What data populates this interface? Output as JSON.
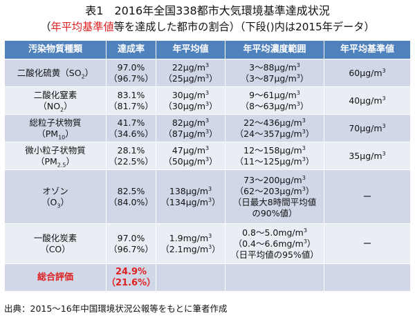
{
  "title": {
    "line1": "表1　2016年全国338都市大気環境基準達成状況",
    "line2_open": "（",
    "line2_red": "年平均基準値",
    "line2_rest": "等を達成した都市の割合）（下段()内は2015年データ）"
  },
  "headers": [
    "汚染物質種類",
    "達成率",
    "年平均値",
    "年平均濃度範囲",
    "年平均基準値"
  ],
  "rows": [
    {
      "pollutant": "二酸化硫黄（SO",
      "pollutant_sub": "2",
      "pollutant_close": "）",
      "rate_2016": "97.0%",
      "rate_2015": "（96.7%）",
      "avg_2016": "22μg/m",
      "avg_2015": "（25μg/m",
      "range_2016": "3～88μg/m",
      "range_2015": "（3～87μg/m",
      "standard": "60μg/m"
    },
    {
      "pollutant": "二酸化窒素",
      "formula": "（NO",
      "formula_sub": "2",
      "formula_close": "）",
      "rate_2016": "83.1%",
      "rate_2015": "（81.7%）",
      "avg_2016": "30μg/m",
      "avg_2015": "（30μg/m",
      "range_2016": "9～61μg/m",
      "range_2015": "（8～63μg/m",
      "standard": "40μg/m"
    },
    {
      "pollutant": "総粒子状物質",
      "formula": "（PM",
      "formula_sub": "10",
      "formula_close": "）",
      "rate_2016": "41.7%",
      "rate_2015": "（34.6%）",
      "avg_2016": "82μg/m",
      "avg_2015": "（87μg/m",
      "range_2016": "22～436μg/m",
      "range_2015": "（24～357μg/m",
      "standard": "70μg/m"
    },
    {
      "pollutant": "微小粒子状物質",
      "formula": "（PM",
      "formula_sub": "2.5",
      "formula_close": "）",
      "rate_2016": "28.1%",
      "rate_2015": "（22.5%）",
      "avg_2016": "47μg/m",
      "avg_2015": "（50μg/m",
      "range_2016": "12～158μg/m",
      "range_2015": "（11～125μg/m",
      "standard": "35μg/m"
    },
    {
      "pollutant": "オゾン",
      "formula": "（O",
      "formula_sub": "3",
      "formula_close": "）",
      "rate_2016": "82.5%",
      "rate_2015": "（84.0%）",
      "avg_2016": "138μg/m",
      "avg_2015": "（134μg/m",
      "range_2016": "73～200μg/m",
      "range_2015": "（62～203μg/m",
      "range_note1": "（日最大8時間平均値",
      "range_note2": "の90%値）",
      "standard": "ー"
    },
    {
      "pollutant": "一酸化炭素",
      "formula": "（CO）",
      "rate_2016": "97.0%",
      "rate_2015": "（96.7%）",
      "avg_2016": "1.9mg/m",
      "avg_2015": "（2.1mg/m",
      "range_2016": "0.8～5.0mg/m",
      "range_2015": "（0.4～6.6mg/m",
      "range_note1": "（日平均値の95%値）",
      "standard": "ー"
    }
  ],
  "evaluation": {
    "label": "総合評価",
    "rate_2016": "24.9%",
    "rate_2015": "（21.6%）"
  },
  "unit_sup": "3",
  "close_paren": "）",
  "source": "出典：2015～16年中国環境状況公報等をもとに筆者作成",
  "colors": {
    "header_bg": "#4f81bd",
    "row_dark": "#d0d8e8",
    "row_light": "#e9edf4",
    "highlight_red": "#e02020"
  }
}
